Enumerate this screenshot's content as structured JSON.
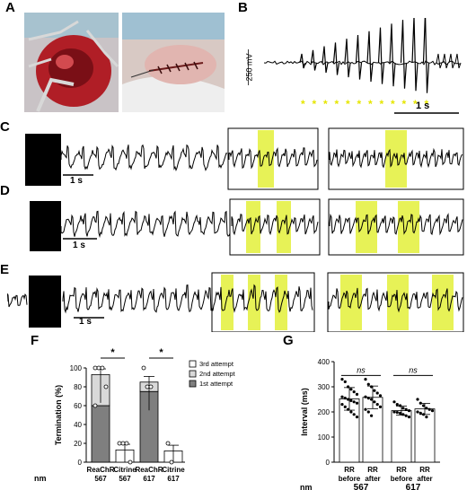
{
  "panels": {
    "A": "A",
    "B": "B",
    "C": "C",
    "D": "D",
    "E": "E",
    "F": "F",
    "G": "G"
  },
  "panel_B": {
    "voltage_scale": "250 mV",
    "time_scale": "1 s",
    "stim_marker": "*",
    "stim_count": 12,
    "highlight_color": "#e3f03a"
  },
  "scale_bars": {
    "C": "1 s",
    "D": "1 s",
    "E": "1 s"
  },
  "chart_data": [
    {
      "panel": "F",
      "type": "bar",
      "ylabel": "Termination (%)",
      "ylim": [
        0,
        100
      ],
      "yticks": [
        "0",
        "20",
        "40",
        "60",
        "80",
        "100"
      ],
      "categories": [
        "ReaChR\n567",
        "Citrine\n567",
        "ReaChR\n617",
        "Citrine\n617"
      ],
      "category_lines": [
        [
          "ReaChR",
          "567"
        ],
        [
          "Citrine",
          "567"
        ],
        [
          "ReaChR",
          "617"
        ],
        [
          "Citrine",
          "617"
        ]
      ],
      "row_label": "nm",
      "series": [
        {
          "name": "1st attempt",
          "color": "#7f7f7f",
          "values": [
            60,
            0,
            75,
            0
          ]
        },
        {
          "name": "2nd attempt",
          "color": "#d9d9d9",
          "values": [
            33,
            0,
            10,
            0
          ]
        },
        {
          "name": "3rd attempt",
          "color": "#ffffff",
          "values": [
            0,
            13,
            0,
            12
          ]
        }
      ],
      "points": [
        [
          100,
          100,
          100,
          80,
          60
        ],
        [
          20,
          20,
          20,
          0
        ],
        [
          100,
          80,
          80
        ],
        [
          20,
          0
        ]
      ],
      "significance": [
        {
          "between": [
            0,
            1
          ],
          "label": "*"
        },
        {
          "between": [
            2,
            3
          ],
          "label": "*"
        }
      ],
      "legend_position": "top-right"
    },
    {
      "panel": "G",
      "type": "bar",
      "ylabel": "Interval (ms)",
      "ylim": [
        0,
        400
      ],
      "yticks": [
        "0",
        "100",
        "200",
        "300",
        "400"
      ],
      "categories": [
        "RR before",
        "RR after",
        "RR before",
        "RR after"
      ],
      "category_lines": [
        [
          "RR",
          "before"
        ],
        [
          "RR",
          "after"
        ],
        [
          "RR",
          "before"
        ],
        [
          "RR",
          "after"
        ]
      ],
      "group_labels": [
        "567",
        "617"
      ],
      "row_label": "nm",
      "values": [
        252,
        258,
        205,
        212
      ],
      "errors": [
        45,
        45,
        18,
        22
      ],
      "points": [
        [
          330,
          320,
          300,
          290,
          280,
          270,
          260,
          255,
          250,
          245,
          240,
          235,
          230,
          220,
          210,
          200,
          190,
          180
        ],
        [
          330,
          310,
          300,
          285,
          275,
          265,
          260,
          255,
          250,
          240,
          230,
          220,
          210,
          200,
          185
        ],
        [
          240,
          230,
          225,
          215,
          210,
          205,
          200,
          198,
          195,
          190,
          185,
          180
        ],
        [
          250,
          235,
          225,
          215,
          210,
          205,
          200,
          195,
          190,
          180
        ]
      ],
      "significance": [
        {
          "between": [
            0,
            1
          ],
          "label": "ns"
        },
        {
          "between": [
            2,
            3
          ],
          "label": "ns"
        }
      ]
    }
  ]
}
